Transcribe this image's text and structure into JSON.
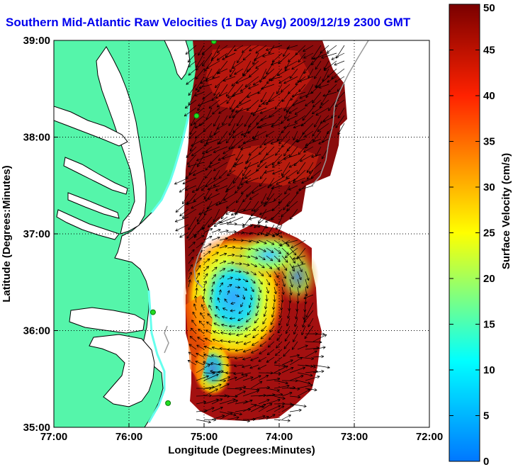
{
  "title": "Southern Mid-Atlantic Raw Velocities (1 Day Avg) 2009/12/19 2300 GMT",
  "map": {
    "x_axis": {
      "label": "Longitude (Degrees:Minutes)",
      "range": [
        -77,
        -72
      ],
      "ticks": [
        {
          "value": -77,
          "label": "77:00"
        },
        {
          "value": -76,
          "label": "76:00"
        },
        {
          "value": -75,
          "label": "75:00"
        },
        {
          "value": -74,
          "label": "74:00"
        },
        {
          "value": -73,
          "label": "73:00"
        },
        {
          "value": -72,
          "label": "72:00"
        }
      ]
    },
    "y_axis": {
      "label": "Latitude (Degrees:Minutes)",
      "range": [
        35,
        39
      ],
      "ticks": [
        {
          "value": 35,
          "label": "35:00"
        },
        {
          "value": 36,
          "label": "36:00"
        },
        {
          "value": 37,
          "label": "37:00"
        },
        {
          "value": 38,
          "label": "38:00"
        },
        {
          "value": 39,
          "label": "39:00"
        }
      ]
    },
    "grid": "dotted",
    "colors": {
      "land": "#55f5aa",
      "water": "#ffffff",
      "coast": "#000000",
      "station": "#22dd22",
      "isobath": "#999999"
    },
    "stations": [
      {
        "lon": -74.87,
        "lat": 38.99
      },
      {
        "lon": -75.1,
        "lat": 38.22
      },
      {
        "lon": -75.68,
        "lat": 36.19
      },
      {
        "lon": -75.48,
        "lat": 35.25
      }
    ]
  },
  "colorbar": {
    "label": "Surface Velocity (cm/s)",
    "range": [
      0,
      50
    ],
    "ticks": [
      0,
      5,
      10,
      15,
      20,
      25,
      30,
      35,
      40,
      45,
      50
    ],
    "scale_colors": [
      "#0077ff",
      "#00ffff",
      "#ffff00",
      "#ff2200",
      "#7a0000"
    ]
  }
}
